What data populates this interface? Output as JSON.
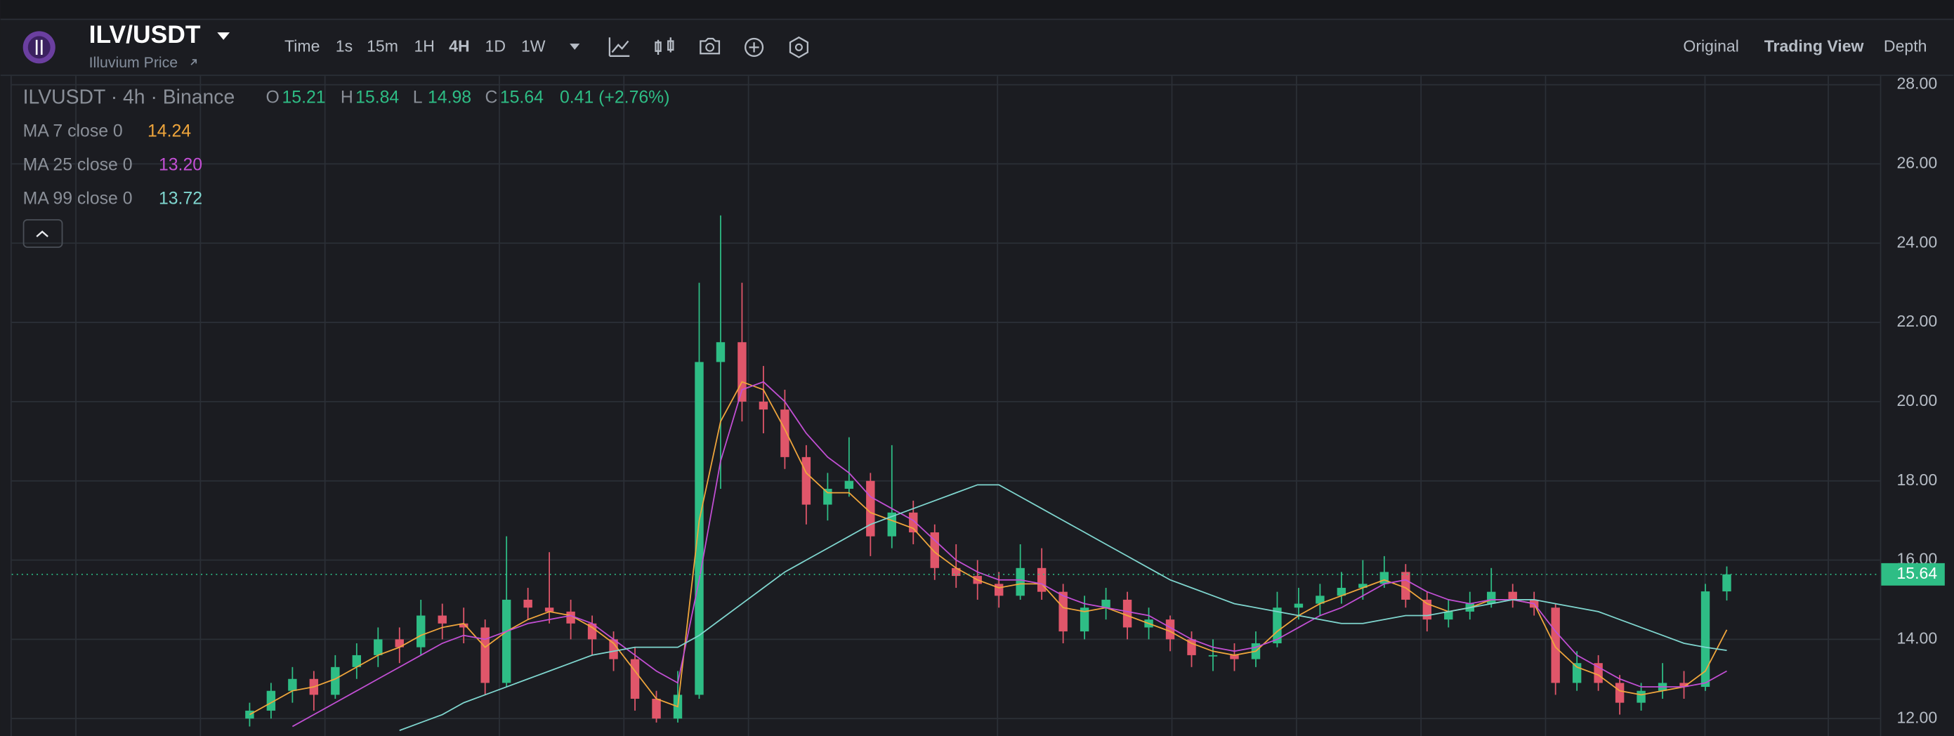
{
  "header": {
    "symbol": "ILV/USDT",
    "subtitle": "Illuvium Price",
    "intervals": [
      "Time",
      "1s",
      "15m",
      "1H",
      "4H",
      "1D",
      "1W"
    ],
    "views": [
      "Original",
      "Trading View",
      "Depth"
    ]
  },
  "chart_data": {
    "type": "candlestick",
    "title": "ILVUSDT · 4h · Binance",
    "ohlc_labels": [
      "O",
      "H",
      "L",
      "C"
    ],
    "change": "0.41 (+2.76%)",
    "up_color": "#2ebd85",
    "down_color": "#e0566a",
    "grid": true,
    "ylim": [
      11.56,
      28.22
    ],
    "yticks": [
      {
        "value": 12,
        "label": "12.00"
      },
      {
        "value": 14,
        "label": "14.00"
      },
      {
        "value": 16,
        "label": "16.00"
      },
      {
        "value": 18,
        "label": "18.00"
      },
      {
        "value": 20,
        "label": "20.00"
      },
      {
        "value": 22,
        "label": "22.00"
      },
      {
        "value": 24,
        "label": "24.00"
      },
      {
        "value": 26,
        "label": "26.00"
      },
      {
        "value": 28,
        "label": "28.00"
      }
    ],
    "candles": [
      [
        12.0,
        12.4,
        11.8,
        12.2
      ],
      [
        12.2,
        12.9,
        12.0,
        12.7
      ],
      [
        12.7,
        13.3,
        12.4,
        13.0
      ],
      [
        13.0,
        13.2,
        12.2,
        12.6
      ],
      [
        12.6,
        13.6,
        12.5,
        13.3
      ],
      [
        13.3,
        13.9,
        13.0,
        13.6
      ],
      [
        13.6,
        14.3,
        13.3,
        14.0
      ],
      [
        14.0,
        14.3,
        13.4,
        13.8
      ],
      [
        13.8,
        15.0,
        13.6,
        14.6
      ],
      [
        14.6,
        14.9,
        14.0,
        14.4
      ],
      [
        14.4,
        14.8,
        13.9,
        14.3
      ],
      [
        14.3,
        14.5,
        12.6,
        12.9
      ],
      [
        12.9,
        16.6,
        12.8,
        15.0
      ],
      [
        15.0,
        15.3,
        14.5,
        14.8
      ],
      [
        14.8,
        16.2,
        14.4,
        14.7
      ],
      [
        14.7,
        15.0,
        14.0,
        14.4
      ],
      [
        14.4,
        14.6,
        13.6,
        14.0
      ],
      [
        14.0,
        14.2,
        13.2,
        13.5
      ],
      [
        13.5,
        13.8,
        12.2,
        12.5
      ],
      [
        12.5,
        12.7,
        11.9,
        12.0
      ],
      [
        12.0,
        13.2,
        11.9,
        12.6
      ],
      [
        12.6,
        23.0,
        12.5,
        21.0
      ],
      [
        21.0,
        24.7,
        17.8,
        21.5
      ],
      [
        21.5,
        23.0,
        19.5,
        20.0
      ],
      [
        20.0,
        20.9,
        19.2,
        19.8
      ],
      [
        19.8,
        20.3,
        18.3,
        18.6
      ],
      [
        18.6,
        18.9,
        16.9,
        17.4
      ],
      [
        17.4,
        18.2,
        17.0,
        17.8
      ],
      [
        17.8,
        19.1,
        17.6,
        18.0
      ],
      [
        18.0,
        18.2,
        16.1,
        16.6
      ],
      [
        16.6,
        18.9,
        16.3,
        17.2
      ],
      [
        17.2,
        17.5,
        16.4,
        16.7
      ],
      [
        16.7,
        16.9,
        15.5,
        15.8
      ],
      [
        15.8,
        16.4,
        15.3,
        15.6
      ],
      [
        15.6,
        16.0,
        15.0,
        15.4
      ],
      [
        15.4,
        15.7,
        14.8,
        15.1
      ],
      [
        15.1,
        16.4,
        15.0,
        15.8
      ],
      [
        15.8,
        16.3,
        15.0,
        15.2
      ],
      [
        15.2,
        15.4,
        13.9,
        14.2
      ],
      [
        14.2,
        15.1,
        14.0,
        14.8
      ],
      [
        14.8,
        15.3,
        14.5,
        15.0
      ],
      [
        15.0,
        15.2,
        14.0,
        14.3
      ],
      [
        14.3,
        14.8,
        14.0,
        14.5
      ],
      [
        14.5,
        14.6,
        13.7,
        14.0
      ],
      [
        14.0,
        14.2,
        13.3,
        13.6
      ],
      [
        13.6,
        14.0,
        13.2,
        13.6
      ],
      [
        13.6,
        13.9,
        13.2,
        13.5
      ],
      [
        13.5,
        14.2,
        13.3,
        13.9
      ],
      [
        13.9,
        15.2,
        13.8,
        14.8
      ],
      [
        14.8,
        15.3,
        14.5,
        14.9
      ],
      [
        14.9,
        15.4,
        14.6,
        15.1
      ],
      [
        15.1,
        15.7,
        14.9,
        15.3
      ],
      [
        15.3,
        16.0,
        15.0,
        15.4
      ],
      [
        15.4,
        16.1,
        15.3,
        15.7
      ],
      [
        15.7,
        15.9,
        14.8,
        15.0
      ],
      [
        15.0,
        15.2,
        14.2,
        14.5
      ],
      [
        14.5,
        15.0,
        14.3,
        14.7
      ],
      [
        14.7,
        15.2,
        14.5,
        14.9
      ],
      [
        14.9,
        15.8,
        14.8,
        15.2
      ],
      [
        15.2,
        15.4,
        14.8,
        15.0
      ],
      [
        15.0,
        15.2,
        14.6,
        14.8
      ],
      [
        14.8,
        14.9,
        12.6,
        12.9
      ],
      [
        12.9,
        13.7,
        12.7,
        13.4
      ],
      [
        13.4,
        13.6,
        12.7,
        12.9
      ],
      [
        12.9,
        13.1,
        12.1,
        12.4
      ],
      [
        12.4,
        12.9,
        12.2,
        12.7
      ],
      [
        12.7,
        13.4,
        12.5,
        12.9
      ],
      [
        12.9,
        13.2,
        12.5,
        12.8
      ],
      [
        12.8,
        15.4,
        12.7,
        15.21
      ],
      [
        15.21,
        15.84,
        14.98,
        15.64
      ]
    ],
    "series": [
      {
        "name": "MA 7 close 0",
        "color": "#f0a63c",
        "legend_value": "14.24",
        "values": [
          12.1,
          12.4,
          12.7,
          12.8,
          13.0,
          13.3,
          13.6,
          13.8,
          14.1,
          14.3,
          14.4,
          13.8,
          14.2,
          14.5,
          14.7,
          14.6,
          14.3,
          13.9,
          13.2,
          12.5,
          12.3,
          17.0,
          19.5,
          20.5,
          20.3,
          19.3,
          18.2,
          17.7,
          17.7,
          17.2,
          17.0,
          16.8,
          16.2,
          15.8,
          15.5,
          15.3,
          15.4,
          15.4,
          14.8,
          14.7,
          14.8,
          14.6,
          14.4,
          14.2,
          13.9,
          13.7,
          13.6,
          13.7,
          14.2,
          14.6,
          14.9,
          15.1,
          15.3,
          15.5,
          15.3,
          14.9,
          14.7,
          14.8,
          15.0,
          15.0,
          14.9,
          13.8,
          13.3,
          13.1,
          12.7,
          12.6,
          12.7,
          12.8,
          13.2,
          14.24
        ]
      },
      {
        "name": "MA 25 close 0",
        "color": "#c24fd4",
        "legend_value": "13.20",
        "values": [
          null,
          null,
          11.8,
          12.1,
          12.4,
          12.7,
          13.0,
          13.3,
          13.6,
          13.9,
          14.1,
          14.0,
          14.2,
          14.4,
          14.5,
          14.6,
          14.4,
          14.0,
          13.6,
          13.2,
          12.9,
          15.5,
          18.5,
          20.3,
          20.5,
          20.0,
          19.2,
          18.6,
          18.2,
          17.6,
          17.3,
          17.0,
          16.5,
          16.0,
          15.7,
          15.5,
          15.5,
          15.4,
          15.1,
          14.9,
          14.8,
          14.7,
          14.6,
          14.3,
          14.0,
          13.8,
          13.7,
          13.8,
          14.0,
          14.3,
          14.6,
          14.8,
          15.1,
          15.4,
          15.5,
          15.2,
          15.0,
          14.9,
          15.0,
          15.0,
          14.9,
          14.2,
          13.6,
          13.3,
          13.0,
          12.8,
          12.8,
          12.8,
          12.9,
          13.2
        ]
      },
      {
        "name": "MA 99 close 0",
        "color": "#7fd6cf",
        "legend_value": "13.72",
        "values": [
          null,
          null,
          null,
          null,
          null,
          null,
          null,
          11.7,
          11.9,
          12.1,
          12.4,
          12.6,
          12.8,
          13.0,
          13.2,
          13.4,
          13.6,
          13.7,
          13.8,
          13.8,
          13.8,
          14.1,
          14.5,
          14.9,
          15.3,
          15.7,
          16.0,
          16.3,
          16.6,
          16.9,
          17.1,
          17.3,
          17.5,
          17.7,
          17.9,
          17.9,
          17.6,
          17.3,
          17.0,
          16.7,
          16.4,
          16.1,
          15.8,
          15.5,
          15.3,
          15.1,
          14.9,
          14.8,
          14.7,
          14.6,
          14.5,
          14.4,
          14.4,
          14.5,
          14.6,
          14.6,
          14.7,
          14.8,
          14.9,
          15.0,
          15.0,
          14.9,
          14.8,
          14.7,
          14.5,
          14.3,
          14.1,
          13.9,
          13.8,
          13.72
        ]
      }
    ]
  }
}
